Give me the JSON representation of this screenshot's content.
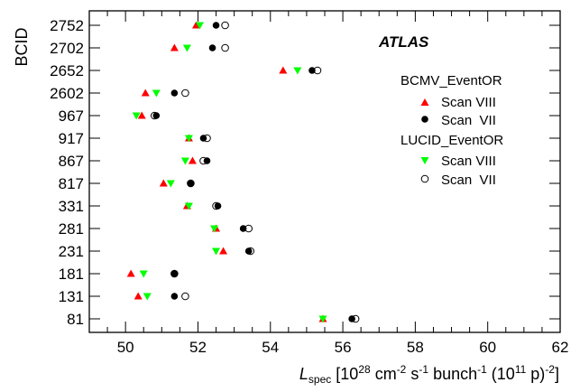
{
  "chart_data": {
    "type": "scatter",
    "annotation": "ATLAS",
    "xlabel": {
      "main": "L",
      "sub": "spec",
      "rest": "[10",
      "sup1": "28",
      "cm": "cm",
      "sup2": "-2",
      "s": "s",
      "sup3": "-1",
      "bunch": "bunch",
      "sup4": "-1",
      "p": "(10",
      "sup5": "11",
      "p2": "p)",
      "sup6": "-2",
      "close": "]"
    },
    "ylabel": "BCID",
    "xlim": [
      49,
      62
    ],
    "xticks": [
      50,
      52,
      54,
      56,
      58,
      60,
      62
    ],
    "categories": [
      "2752",
      "2702",
      "2652",
      "2602",
      "967",
      "917",
      "867",
      "817",
      "331",
      "281",
      "231",
      "181",
      "131",
      "81"
    ],
    "legend": {
      "groups": [
        {
          "title": "BCMV_EventOR",
          "entries": [
            {
              "label": "Scan VIII",
              "marker": "triangle-up",
              "color": "#ff0000"
            },
            {
              "label": "Scan  VII",
              "marker": "circle-filled",
              "color": "#000000"
            }
          ]
        },
        {
          "title": "LUCID_EventOR",
          "entries": [
            {
              "label": "Scan VIII",
              "marker": "triangle-down",
              "color": "#00ff00"
            },
            {
              "label": "Scan  VII",
              "marker": "circle-open",
              "color": "#000000"
            }
          ]
        }
      ]
    },
    "series": [
      {
        "name": "BCMV_EventOR Scan VIII",
        "marker": "triangle-up",
        "color": "#ff0000",
        "values": [
          51.95,
          51.35,
          54.35,
          50.55,
          50.45,
          51.75,
          51.85,
          51.05,
          51.7,
          52.5,
          52.7,
          50.15,
          50.35,
          55.45
        ]
      },
      {
        "name": "BCMV_EventOR Scan VII",
        "marker": "circle-filled",
        "color": "#000000",
        "values": [
          52.5,
          52.4,
          55.15,
          51.35,
          50.85,
          52.15,
          52.25,
          51.8,
          52.55,
          53.25,
          53.4,
          51.35,
          51.35,
          56.25
        ]
      },
      {
        "name": "LUCID_EventOR Scan VIII",
        "marker": "triangle-down",
        "color": "#00ff00",
        "values": [
          52.05,
          51.7,
          54.75,
          50.85,
          50.3,
          51.75,
          51.65,
          51.25,
          51.75,
          52.45,
          52.5,
          50.5,
          50.6,
          55.45
        ]
      },
      {
        "name": "LUCID_EventOR Scan VII",
        "marker": "circle-open",
        "color": "#000000",
        "values": [
          52.75,
          52.75,
          55.3,
          51.65,
          50.8,
          52.25,
          52.15,
          51.8,
          52.5,
          53.4,
          53.45,
          51.35,
          51.65,
          56.35
        ]
      }
    ]
  }
}
